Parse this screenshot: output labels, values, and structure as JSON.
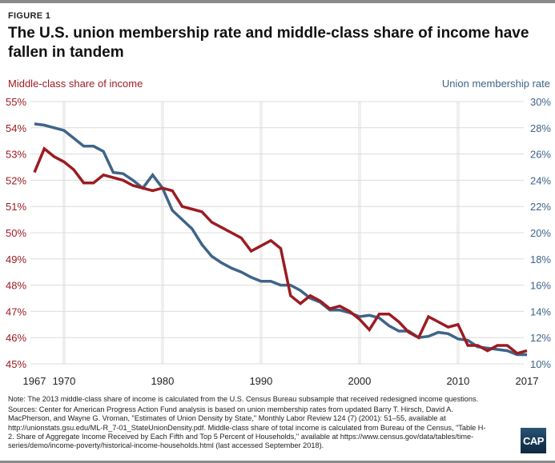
{
  "figure_label": "FIGURE 1",
  "title": "The U.S. union membership rate and middle-class share of income have fallen in tandem",
  "notes": {
    "note": "Note: The 2013 middle-class share of income is calculated from the U.S. Census Bureau subsample that received redesigned income questions.",
    "sources": "Sources: Center for American Progress Action Fund analysis is based on union membership rates from updated Barry T. Hirsch, David A. MacPherson, and Wayne G. Vroman, \"Estimates of Union Density by State,\" Monthly Labor Review 124 (7) (2001): 51–55, available at http://unionstats.gsu.edu/ML-R_7-01_StateUnionDensity.pdf. Middle-class share of total income is calculated from Bureau of the Census, \"Table H-2. Share of Aggregate Income Received by Each Fifth and Top 5 Percent of Households,\" available at https://www.census.gov/data/tables/time-series/demo/income-poverty/historical-income-households.html (last accessed September 2018)."
  },
  "logo_text": "CAP",
  "colors": {
    "income": "#9b1c22",
    "union": "#3f6488",
    "grid": "#dcdcdc",
    "vgrid": "#efefef"
  },
  "chart_data": {
    "type": "line",
    "title": "The U.S. union membership rate and middle-class share of income have fallen in tandem",
    "xlabel": "",
    "x_ticks": [
      "1967",
      "1970",
      "1980",
      "1990",
      "2000",
      "2010",
      "2017"
    ],
    "x_tick_values": [
      1967,
      1970,
      1980,
      1990,
      2000,
      2010,
      2017
    ],
    "xlim": [
      1967,
      2017
    ],
    "grid": true,
    "left_axis": {
      "label": "Middle-class share of income",
      "ylim": [
        45,
        55
      ],
      "ticks": [
        "55%",
        "54%",
        "53%",
        "52%",
        "51%",
        "50%",
        "49%",
        "48%",
        "47%",
        "46%",
        "45%"
      ],
      "tick_values": [
        55,
        54,
        53,
        52,
        51,
        50,
        49,
        48,
        47,
        46,
        45
      ]
    },
    "right_axis": {
      "label": "Union membership rate",
      "ylim": [
        10,
        30
      ],
      "ticks": [
        "30%",
        "28%",
        "26%",
        "24%",
        "22%",
        "20%",
        "18%",
        "16%",
        "14%",
        "12%",
        "10%"
      ],
      "tick_values": [
        30,
        28,
        26,
        24,
        22,
        20,
        18,
        16,
        14,
        12,
        10
      ]
    },
    "x": [
      1967,
      1968,
      1969,
      1970,
      1971,
      1972,
      1973,
      1974,
      1975,
      1976,
      1977,
      1978,
      1979,
      1980,
      1981,
      1982,
      1983,
      1984,
      1985,
      1986,
      1987,
      1988,
      1989,
      1990,
      1991,
      1992,
      1993,
      1994,
      1995,
      1996,
      1997,
      1998,
      1999,
      2000,
      2001,
      2002,
      2003,
      2004,
      2005,
      2006,
      2007,
      2008,
      2009,
      2010,
      2011,
      2012,
      2013,
      2014,
      2015,
      2016,
      2017
    ],
    "series": [
      {
        "name": "Union membership rate",
        "axis": "right",
        "values": [
          28.3,
          28.2,
          28.0,
          27.8,
          27.2,
          26.6,
          26.6,
          26.2,
          24.6,
          24.5,
          24.0,
          23.4,
          24.4,
          23.4,
          21.7,
          21.0,
          20.3,
          19.1,
          18.2,
          17.7,
          17.3,
          17.0,
          16.6,
          16.3,
          16.3,
          16.0,
          16.0,
          15.6,
          15.0,
          14.7,
          14.1,
          14.1,
          13.9,
          13.6,
          13.7,
          13.5,
          12.9,
          12.5,
          12.5,
          12.0,
          12.1,
          12.4,
          12.3,
          11.9,
          11.8,
          11.3,
          11.2,
          11.1,
          11.0,
          10.7,
          10.7
        ]
      },
      {
        "name": "Middle-class share of income",
        "axis": "left",
        "values": [
          52.3,
          53.2,
          52.9,
          52.7,
          52.4,
          51.9,
          51.9,
          52.2,
          52.1,
          52.0,
          51.8,
          51.7,
          51.6,
          51.7,
          51.6,
          51.0,
          50.9,
          50.8,
          50.4,
          50.2,
          50.0,
          49.8,
          49.3,
          49.5,
          49.7,
          49.4,
          47.6,
          47.3,
          47.6,
          47.4,
          47.1,
          47.2,
          47.0,
          46.7,
          46.3,
          46.9,
          46.9,
          46.6,
          46.2,
          46.0,
          46.8,
          46.6,
          46.4,
          46.5,
          45.7,
          45.7,
          45.5,
          45.7,
          45.7,
          45.4,
          45.5
        ]
      }
    ]
  }
}
